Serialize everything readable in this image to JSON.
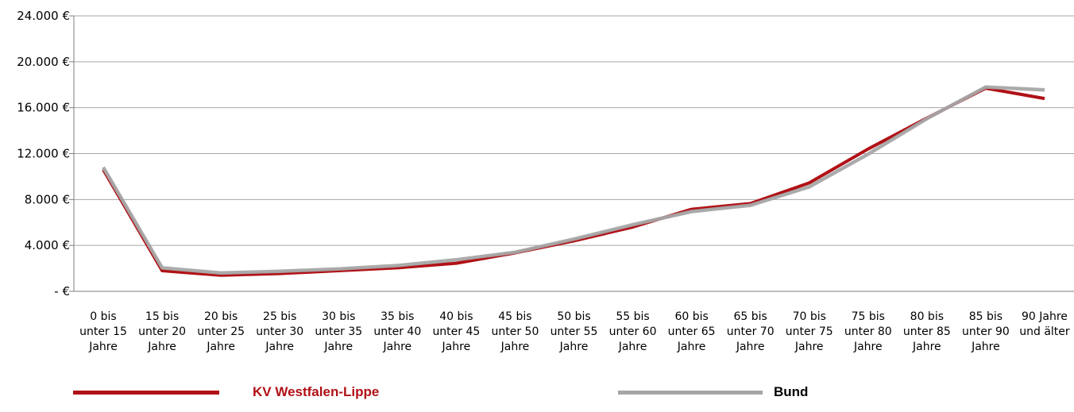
{
  "chart_data": {
    "type": "line",
    "categories": [
      [
        "0 bis",
        "unter 15",
        "Jahre"
      ],
      [
        "15 bis",
        "unter 20",
        "Jahre"
      ],
      [
        "20 bis",
        "unter 25",
        "Jahre"
      ],
      [
        "25 bis",
        "unter 30",
        "Jahre"
      ],
      [
        "30 bis",
        "unter 35",
        "Jahre"
      ],
      [
        "35 bis",
        "unter 40",
        "Jahre"
      ],
      [
        "40 bis",
        "unter 45",
        "Jahre"
      ],
      [
        "45 bis",
        "unter 50",
        "Jahre"
      ],
      [
        "50 bis",
        "unter 55",
        "Jahre"
      ],
      [
        "55 bis",
        "unter 60",
        "Jahre"
      ],
      [
        "60 bis",
        "unter 65",
        "Jahre"
      ],
      [
        "65 bis",
        "unter 70",
        "Jahre"
      ],
      [
        "70 bis",
        "unter 75",
        "Jahre"
      ],
      [
        "75 bis",
        "unter 80",
        "Jahre"
      ],
      [
        "80 bis",
        "unter 85",
        "Jahre"
      ],
      [
        "85 bis",
        "unter 90",
        "Jahre"
      ],
      [
        "90 Jahre",
        "und älter"
      ]
    ],
    "y_ticks": [
      {
        "value": 0,
        "label": "- €"
      },
      {
        "value": 4000,
        "label": "4.000 €"
      },
      {
        "value": 8000,
        "label": "8.000 €"
      },
      {
        "value": 12000,
        "label": "12.000 €"
      },
      {
        "value": 16000,
        "label": "16.000 €"
      },
      {
        "value": 20000,
        "label": "20.000 €"
      },
      {
        "value": 24000,
        "label": "24.000 €"
      }
    ],
    "ylim": [
      0,
      24000
    ],
    "grid": "horizontal",
    "legend_position": "bottom",
    "series": [
      {
        "name": "KV Westfalen-Lippe",
        "color": "#B01116",
        "values": [
          10600,
          1800,
          1400,
          1550,
          1800,
          2050,
          2450,
          3350,
          4400,
          5600,
          7150,
          7650,
          9450,
          12400,
          15100,
          17700,
          16800
        ]
      },
      {
        "name": "Bund",
        "color": "#A6A6A6",
        "values": [
          10800,
          2050,
          1600,
          1750,
          1950,
          2250,
          2750,
          3400,
          4550,
          5800,
          6950,
          7500,
          9100,
          11950,
          15050,
          17800,
          17550
        ]
      }
    ]
  },
  "legend": {
    "items": [
      {
        "label": "KV Westfalen-Lippe",
        "color": "#B01116"
      },
      {
        "label": "Bund",
        "color": "#A6A6A6"
      }
    ]
  }
}
